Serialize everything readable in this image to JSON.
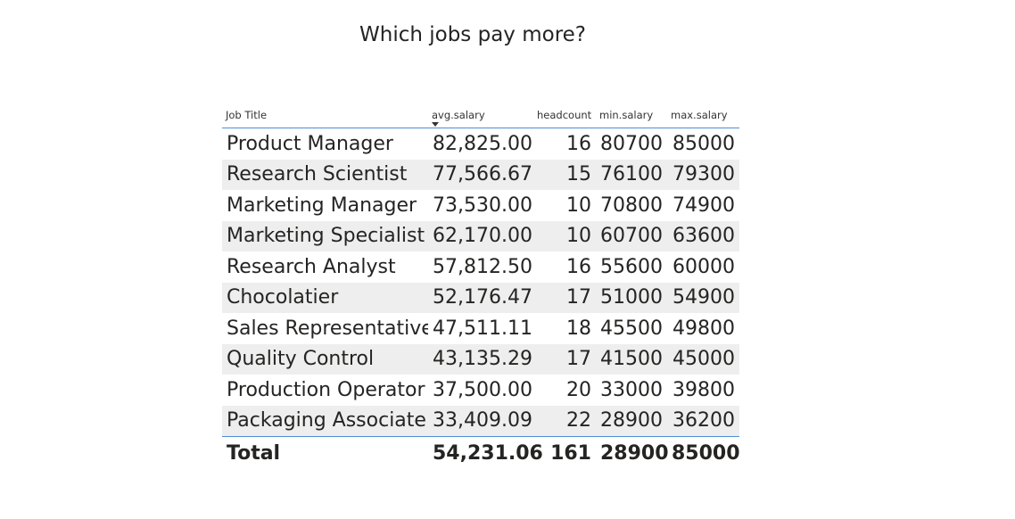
{
  "title": "Which jobs pay more?",
  "colors": {
    "header_rule": "#4f8ed6",
    "stripe": "#eeeeee",
    "text": "#252423"
  },
  "sort": {
    "column": "avg.salary",
    "direction": "descending",
    "indicator_icon": "sort-down-icon"
  },
  "chart_data": {
    "type": "table",
    "title": "Which jobs pay more?",
    "columns": [
      "Job Title",
      "avg.salary",
      "headcount",
      "min.salary",
      "max.salary"
    ],
    "rows": [
      [
        "Product Manager",
        "82,825.00",
        "16",
        "80700",
        "85000"
      ],
      [
        "Research Scientist",
        "77,566.67",
        "15",
        "76100",
        "79300"
      ],
      [
        "Marketing Manager",
        "73,530.00",
        "10",
        "70800",
        "74900"
      ],
      [
        "Marketing Specialist",
        "62,170.00",
        "10",
        "60700",
        "63600"
      ],
      [
        "Research Analyst",
        "57,812.50",
        "16",
        "55600",
        "60000"
      ],
      [
        "Chocolatier",
        "52,176.47",
        "17",
        "51000",
        "54900"
      ],
      [
        "Sales Representative",
        "47,511.11",
        "18",
        "45500",
        "49800"
      ],
      [
        "Quality Control",
        "43,135.29",
        "17",
        "41500",
        "45000"
      ],
      [
        "Production Operator",
        "37,500.00",
        "20",
        "33000",
        "39800"
      ],
      [
        "Packaging Associate",
        "33,409.09",
        "22",
        "28900",
        "36200"
      ]
    ],
    "total": [
      "Total",
      "54,231.06",
      "161",
      "28900",
      "85000"
    ]
  }
}
